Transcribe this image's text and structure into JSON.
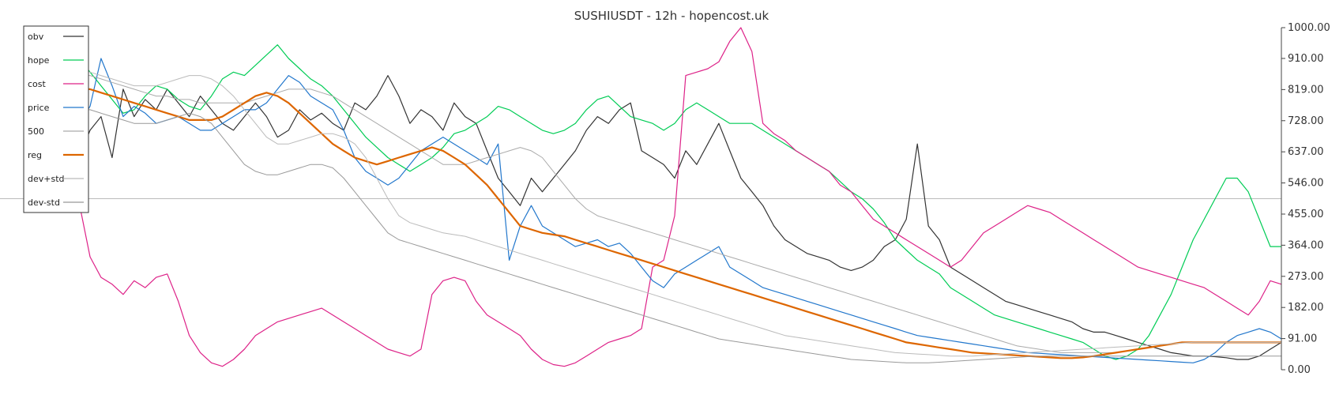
{
  "chart_data": {
    "type": "line",
    "title": "SUSHIUSDT - 12h - hopencost.uk",
    "xlabel": "",
    "ylabel": "",
    "ylim": [
      0,
      1000
    ],
    "yticks": [
      "1000.00",
      "910.00",
      "819.00",
      "728.00",
      "637.00",
      "546.00",
      "455.00",
      "364.00",
      "273.00",
      "182.00",
      "91.00",
      "0.00"
    ],
    "y_axis_side": "right",
    "grid": false,
    "legend_position": "top-left",
    "hline": {
      "value": 500,
      "color": "#bbbbbb"
    },
    "series": [
      {
        "name": "obv",
        "color": "#333333",
        "width": 1.2,
        "values": [
          620,
          700,
          740,
          620,
          820,
          740,
          790,
          760,
          820,
          780,
          740,
          800,
          760,
          720,
          700,
          740,
          780,
          740,
          680,
          700,
          760,
          730,
          750,
          720,
          700,
          780,
          760,
          800,
          860,
          800,
          720,
          760,
          740,
          700,
          780,
          740,
          720,
          640,
          560,
          520,
          480,
          560,
          520,
          560,
          600,
          640,
          700,
          740,
          720,
          760,
          780,
          640,
          620,
          600,
          560,
          640,
          600,
          660,
          720,
          640,
          560,
          520,
          480,
          420,
          380,
          360,
          340,
          330,
          320,
          300,
          290,
          300,
          320,
          360,
          380,
          440,
          660,
          420,
          380,
          300,
          280,
          260,
          240,
          220,
          200,
          190,
          180,
          170,
          160,
          150,
          140,
          120,
          110,
          110,
          100,
          90,
          80,
          70,
          60,
          50,
          45,
          40,
          40,
          38,
          35,
          30,
          30,
          40,
          60,
          80
        ]
      },
      {
        "name": "hope",
        "color": "#00cc55",
        "width": 1.2,
        "values": [
          910,
          870,
          830,
          790,
          750,
          760,
          800,
          830,
          820,
          790,
          770,
          760,
          800,
          850,
          870,
          860,
          890,
          920,
          950,
          910,
          880,
          850,
          830,
          800,
          760,
          720,
          680,
          650,
          620,
          600,
          580,
          600,
          620,
          650,
          690,
          700,
          720,
          740,
          770,
          760,
          740,
          720,
          700,
          690,
          700,
          720,
          760,
          790,
          800,
          770,
          740,
          730,
          720,
          700,
          720,
          760,
          780,
          760,
          740,
          720,
          720,
          720,
          700,
          680,
          660,
          640,
          620,
          600,
          580,
          550,
          520,
          500,
          470,
          430,
          380,
          350,
          320,
          300,
          280,
          240,
          220,
          200,
          180,
          160,
          150,
          140,
          130,
          120,
          110,
          100,
          90,
          80,
          60,
          40,
          30,
          40,
          60,
          100,
          160,
          220,
          300,
          380,
          440,
          500,
          560,
          560,
          520,
          440,
          360,
          360
        ]
      },
      {
        "name": "cost",
        "color": "#dd2288",
        "width": 1.2,
        "values": [
          490,
          330,
          270,
          250,
          220,
          260,
          240,
          270,
          280,
          200,
          100,
          50,
          20,
          10,
          30,
          60,
          100,
          120,
          140,
          150,
          160,
          170,
          180,
          160,
          140,
          120,
          100,
          80,
          60,
          50,
          40,
          60,
          220,
          260,
          270,
          260,
          200,
          160,
          140,
          120,
          100,
          60,
          30,
          15,
          10,
          20,
          40,
          60,
          80,
          90,
          100,
          120,
          300,
          320,
          450,
          860,
          870,
          880,
          900,
          960,
          1000,
          930,
          720,
          690,
          670,
          640,
          620,
          600,
          580,
          540,
          520,
          480,
          440,
          420,
          400,
          380,
          360,
          340,
          320,
          300,
          320,
          360,
          400,
          420,
          440,
          460,
          480,
          470,
          460,
          440,
          420,
          400,
          380,
          360,
          340,
          320,
          300,
          290,
          280,
          270,
          260,
          250,
          240,
          220,
          200,
          180,
          160,
          200,
          260,
          250
        ]
      },
      {
        "name": "price",
        "color": "#2277cc",
        "width": 1.2,
        "values": [
          720,
          770,
          910,
          830,
          740,
          770,
          750,
          720,
          730,
          740,
          720,
          700,
          700,
          720,
          740,
          760,
          760,
          780,
          820,
          860,
          840,
          800,
          780,
          760,
          700,
          620,
          580,
          560,
          540,
          560,
          600,
          640,
          660,
          680,
          660,
          640,
          620,
          600,
          660,
          320,
          420,
          480,
          420,
          400,
          380,
          360,
          370,
          380,
          360,
          370,
          340,
          300,
          260,
          240,
          280,
          300,
          320,
          340,
          360,
          300,
          280,
          260,
          240,
          230,
          220,
          210,
          200,
          190,
          180,
          170,
          160,
          150,
          140,
          130,
          120,
          110,
          100,
          95,
          90,
          85,
          80,
          75,
          70,
          65,
          60,
          55,
          50,
          48,
          46,
          44,
          42,
          40,
          38,
          36,
          34,
          32,
          30,
          28,
          26,
          24,
          22,
          20,
          30,
          50,
          80,
          100,
          110,
          120,
          110,
          90
        ]
      },
      {
        "name": "500",
        "color": "#aaaaaa",
        "width": 1.0,
        "values": [
          860,
          860,
          850,
          840,
          830,
          820,
          810,
          800,
          800,
          790,
          790,
          780,
          780,
          780,
          780,
          780,
          790,
          800,
          810,
          820,
          820,
          820,
          810,
          800,
          780,
          760,
          740,
          720,
          700,
          680,
          660,
          640,
          620,
          600,
          600,
          600,
          610,
          620,
          630,
          640,
          650,
          640,
          620,
          580,
          540,
          500,
          470,
          450,
          440,
          430,
          420,
          410,
          400,
          390,
          380,
          370,
          360,
          350,
          340,
          330,
          320,
          310,
          300,
          290,
          280,
          270,
          260,
          250,
          240,
          230,
          220,
          210,
          200,
          190,
          180,
          170,
          160,
          150,
          140,
          130,
          120,
          110,
          100,
          90,
          80,
          70,
          65,
          60,
          55,
          50,
          50,
          50,
          50,
          50,
          50,
          55,
          60,
          65,
          70,
          75,
          80,
          80,
          80,
          80,
          80,
          80,
          80,
          80,
          80,
          80
        ]
      },
      {
        "name": "reg",
        "color": "#dd6600",
        "width": 2.2,
        "values": [
          820,
          820,
          810,
          800,
          790,
          780,
          770,
          760,
          750,
          740,
          730,
          730,
          730,
          740,
          760,
          780,
          800,
          810,
          800,
          780,
          750,
          720,
          690,
          660,
          640,
          620,
          610,
          600,
          610,
          620,
          630,
          640,
          650,
          640,
          620,
          600,
          570,
          540,
          500,
          460,
          420,
          410,
          400,
          395,
          390,
          380,
          370,
          360,
          350,
          340,
          330,
          320,
          310,
          300,
          290,
          280,
          270,
          260,
          250,
          240,
          230,
          220,
          210,
          200,
          190,
          180,
          170,
          160,
          150,
          140,
          130,
          120,
          110,
          100,
          90,
          80,
          75,
          70,
          65,
          60,
          55,
          50,
          48,
          46,
          44,
          42,
          40,
          38,
          36,
          34,
          34,
          36,
          40,
          45,
          50,
          55,
          60,
          65,
          70,
          75,
          80,
          80,
          80,
          80,
          80,
          80,
          80,
          80,
          80,
          80
        ]
      },
      {
        "name": "dev+std",
        "color": "#bbbbbb",
        "width": 1.0,
        "values": [
          880,
          870,
          860,
          850,
          840,
          830,
          830,
          830,
          840,
          850,
          860,
          860,
          850,
          830,
          800,
          760,
          720,
          680,
          660,
          660,
          670,
          680,
          690,
          690,
          680,
          660,
          620,
          560,
          500,
          450,
          430,
          420,
          410,
          400,
          395,
          390,
          380,
          370,
          360,
          350,
          340,
          330,
          320,
          310,
          300,
          290,
          280,
          270,
          260,
          250,
          240,
          230,
          220,
          210,
          200,
          190,
          180,
          170,
          160,
          150,
          140,
          130,
          120,
          110,
          100,
          95,
          90,
          85,
          80,
          75,
          70,
          65,
          60,
          55,
          50,
          48,
          46,
          44,
          42,
          40,
          40,
          40,
          42,
          44,
          46,
          48,
          50,
          52,
          54,
          56,
          58,
          60,
          62,
          64,
          66,
          68,
          70,
          72,
          74,
          76,
          78,
          80,
          80,
          80,
          80,
          80,
          80,
          80,
          80,
          80
        ]
      },
      {
        "name": "dev-std",
        "color": "#999999",
        "width": 1.0,
        "values": [
          760,
          760,
          750,
          740,
          730,
          720,
          720,
          720,
          730,
          740,
          750,
          740,
          720,
          680,
          640,
          600,
          580,
          570,
          570,
          580,
          590,
          600,
          600,
          590,
          560,
          520,
          480,
          440,
          400,
          380,
          370,
          360,
          350,
          340,
          330,
          320,
          310,
          300,
          290,
          280,
          270,
          260,
          250,
          240,
          230,
          220,
          210,
          200,
          190,
          180,
          170,
          160,
          150,
          140,
          130,
          120,
          110,
          100,
          90,
          85,
          80,
          75,
          70,
          65,
          60,
          55,
          50,
          45,
          40,
          35,
          30,
          28,
          26,
          24,
          22,
          20,
          20,
          20,
          22,
          24,
          26,
          28,
          30,
          32,
          34,
          36,
          38,
          40,
          40,
          40,
          40,
          40,
          40,
          40,
          40,
          40,
          40,
          40,
          40,
          40,
          40,
          40,
          40,
          40,
          40,
          40,
          40,
          40,
          40,
          40
        ]
      }
    ]
  }
}
